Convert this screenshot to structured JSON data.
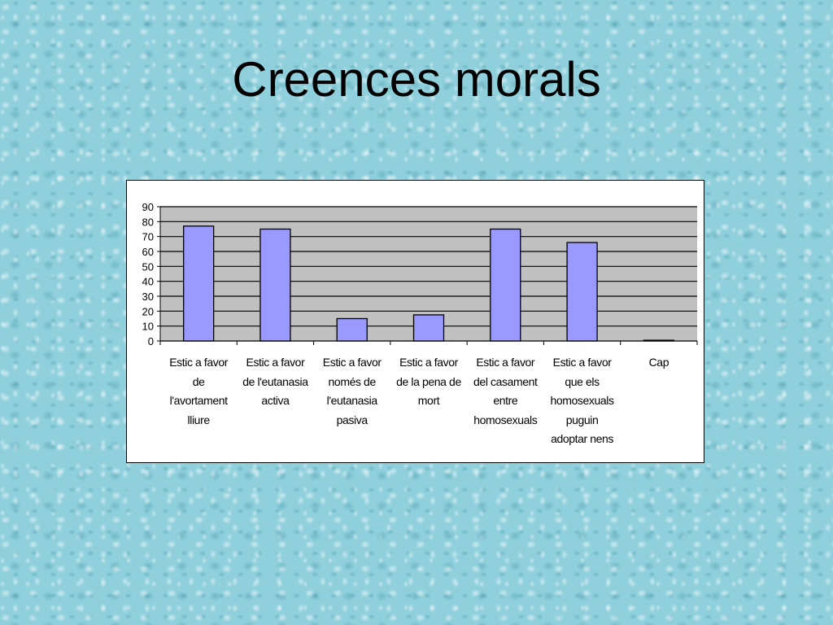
{
  "slide": {
    "title": "Creences morals"
  },
  "colors": {
    "bar_fill": "#9999ff",
    "bar_stroke": "#000000",
    "plot_background": "#c0c0c0",
    "gridline": "#000000",
    "chart_background": "#ffffff"
  },
  "chart_data": {
    "type": "bar",
    "title": "",
    "xlabel": "",
    "ylabel": "",
    "ylim": [
      0,
      90
    ],
    "yticks": [
      0,
      10,
      20,
      30,
      40,
      50,
      60,
      70,
      80,
      90
    ],
    "grid": true,
    "legend": "none",
    "categories": [
      "Estic a favor de l'avortament lliure",
      "Estic a favor de l'eutanasia activa",
      "Estic a favor només de l'eutanasia pasiva",
      "Estic a favor de la pena de mort",
      "Estic a favor del casament entre homosexuals",
      "Estic a favor que els homosexuals puguin adoptar nens",
      "Cap"
    ],
    "category_label_lines": [
      [
        "Estic a favor",
        "de",
        "l'avortament",
        "lliure"
      ],
      [
        "Estic a favor",
        "de l'eutanasia",
        "activa"
      ],
      [
        "Estic a favor",
        "només de",
        "l'eutanasia",
        "pasiva"
      ],
      [
        "Estic a favor",
        "de la pena de",
        "mort"
      ],
      [
        "Estic a favor",
        "del casament",
        "entre",
        "homosexuals"
      ],
      [
        "Estic a favor",
        "que els",
        "homosexuals",
        "puguin",
        "adoptar nens"
      ],
      [
        "Cap"
      ]
    ],
    "values": [
      77,
      75,
      15,
      17.5,
      75,
      66,
      0.5
    ]
  }
}
